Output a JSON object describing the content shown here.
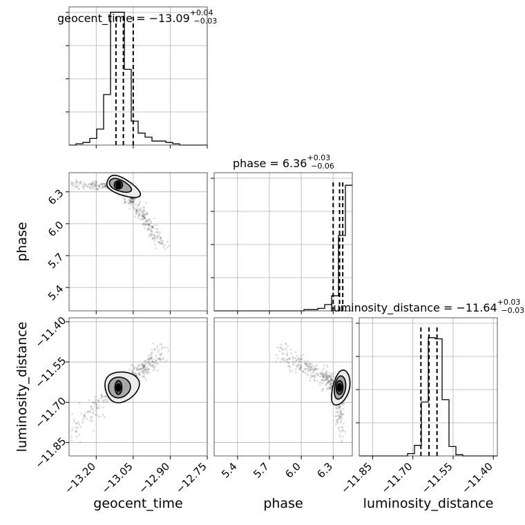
{
  "chart_data": {
    "type": "corner",
    "parameters": [
      {
        "name": "geocent_time",
        "label": "geocent_time",
        "title": {
          "prefix": "geocent_time = ",
          "median": "−13.09",
          "plus": "+0.04",
          "minus": "−0.03"
        },
        "range": [
          -13.31,
          -12.75
        ],
        "ticks": [
          -13.2,
          -13.05,
          -12.9,
          -12.75
        ],
        "tick_labels": [
          "−13.20",
          "−13.05",
          "−12.90",
          "−12.75"
        ],
        "quantiles": [
          -13.12,
          -13.09,
          -13.05
        ],
        "hist_edges": [
          -13.31,
          -13.282,
          -13.254,
          -13.226,
          -13.198,
          -13.17,
          -13.142,
          -13.114,
          -13.086,
          -13.058,
          -13.03,
          -13.002,
          -12.974,
          -12.946,
          -12.918,
          -12.89,
          -12.862,
          -12.834,
          -12.806,
          -12.778,
          -12.75
        ],
        "hist_counts": [
          0,
          1,
          2,
          5,
          12,
          38,
          100,
          100,
          57,
          18,
          9,
          6,
          3,
          3,
          2,
          1,
          0,
          0,
          0,
          0
        ],
        "hist_ylim": [
          0,
          104
        ]
      },
      {
        "name": "phase",
        "label": "phase",
        "title": {
          "prefix": "phase = ",
          "median": "6.36",
          "plus": "+0.03",
          "minus": "−0.06"
        },
        "range": [
          5.18,
          6.48
        ],
        "ticks": [
          5.4,
          5.7,
          6.0,
          6.3
        ],
        "tick_labels": [
          "5.4",
          "5.7",
          "6.0",
          "6.3"
        ],
        "quantiles": [
          6.3,
          6.36,
          6.39
        ],
        "hist_edges": [
          5.18,
          5.245,
          5.31,
          5.375,
          5.44,
          5.505,
          5.57,
          5.635,
          5.7,
          5.765,
          5.83,
          5.895,
          5.96,
          6.025,
          6.09,
          6.155,
          6.22,
          6.285,
          6.35,
          6.415,
          6.48
        ],
        "hist_counts": [
          0,
          0,
          0,
          0,
          0,
          0,
          0,
          0,
          0,
          0,
          0,
          0,
          0,
          1,
          1,
          2,
          5,
          12,
          60,
          100
        ],
        "hist_ylim": [
          0,
          110
        ]
      },
      {
        "name": "luminosity_distance",
        "label": "luminosity_distance",
        "title": {
          "prefix": "luminosity_distance = ",
          "median": "−11.64",
          "plus": "+0.03",
          "minus": "−0.03"
        },
        "range": [
          -11.9,
          -11.385
        ],
        "ticks": [
          -11.85,
          -11.7,
          -11.55,
          -11.4
        ],
        "tick_labels": [
          "−11.85",
          "−11.70",
          "−11.55",
          "−11.40"
        ],
        "quantiles": [
          -11.67,
          -11.64,
          -11.61
        ],
        "hist_edges": [
          -11.9,
          -11.87425,
          -11.8485,
          -11.82275,
          -11.797,
          -11.77125,
          -11.7455,
          -11.71975,
          -11.694,
          -11.66825,
          -11.6425,
          -11.61675,
          -11.591,
          -11.56525,
          -11.5395,
          -11.51375,
          -11.488,
          -11.46225,
          -11.4365,
          -11.41075,
          -11.385
        ],
        "hist_counts": [
          0,
          0,
          0,
          0,
          0,
          0,
          0,
          2,
          9,
          46,
          101,
          100,
          48,
          8,
          1,
          0,
          0,
          0,
          0,
          0
        ],
        "hist_ylim": [
          0,
          118
        ]
      }
    ],
    "contour_levels": [
      "outer",
      "middle",
      "inner"
    ],
    "colors": {
      "line": "#000000",
      "points": "#000000",
      "grid": "#b0b0b0",
      "background": "#ffffff"
    },
    "grid": true
  }
}
